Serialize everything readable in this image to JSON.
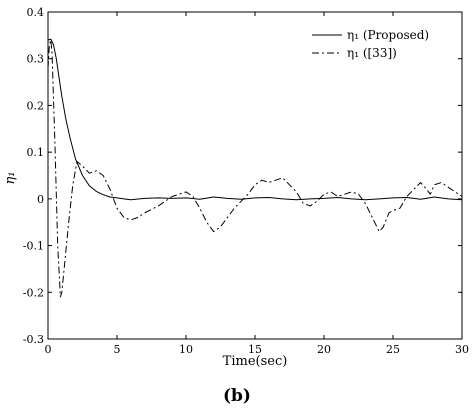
{
  "chart_data": {
    "type": "line",
    "xlabel": "Time(sec)",
    "ylabel": "η₁",
    "panel_label": "(b)",
    "xlim": [
      0,
      30
    ],
    "ylim": [
      -0.3,
      0.4
    ],
    "xticks": [
      0,
      5,
      10,
      15,
      20,
      25,
      30
    ],
    "yticks": [
      -0.3,
      -0.2,
      -0.1,
      0,
      0.1,
      0.2,
      0.3,
      0.4
    ],
    "ytick_labels": [
      "-0.3",
      "-0.2",
      "-0.1",
      "0",
      "0.1",
      "0.2",
      "0.3",
      "0.4"
    ],
    "legend_position": "top-right",
    "series": [
      {
        "name": "η₁ (Proposed)",
        "style": "solid",
        "color": "#000000",
        "x": [
          0,
          0.2,
          0.4,
          0.6,
          0.8,
          1.0,
          1.3,
          1.6,
          2.0,
          2.5,
          3.0,
          3.5,
          4.0,
          4.5,
          5.0,
          5.5,
          6,
          7,
          8,
          9,
          10,
          11,
          12,
          13,
          14,
          15,
          16,
          17,
          18,
          19,
          20,
          21,
          22,
          23,
          24,
          25,
          26,
          27,
          28,
          29,
          30
        ],
        "y": [
          0.34,
          0.342,
          0.33,
          0.3,
          0.26,
          0.22,
          0.17,
          0.13,
          0.085,
          0.05,
          0.028,
          0.016,
          0.009,
          0.004,
          0.002,
          0.0,
          -0.002,
          0.001,
          0.002,
          0.001,
          0.002,
          -0.001,
          0.004,
          0.001,
          -0.001,
          0.002,
          0.003,
          0.0,
          -0.002,
          0.0,
          0.001,
          0.003,
          0.0,
          -0.002,
          0.0,
          0.002,
          0.003,
          -0.001,
          0.004,
          0.0,
          -0.002
        ]
      },
      {
        "name": "η₁ ([33])",
        "style": "dashdot",
        "color": "#000000",
        "x": [
          0,
          0.1,
          0.2,
          0.3,
          0.5,
          0.7,
          0.9,
          1.0,
          1.2,
          1.5,
          1.8,
          2.1,
          2.5,
          3.0,
          3.5,
          4.0,
          4.5,
          5.0,
          5.5,
          6.0,
          6.5,
          7.0,
          8.0,
          9.0,
          9.5,
          10.0,
          10.5,
          11.0,
          11.5,
          12.0,
          12.5,
          13.0,
          13.5,
          14.0,
          14.5,
          15.0,
          15.5,
          16.0,
          16.5,
          17.0,
          17.5,
          18.0,
          18.5,
          19.0,
          19.5,
          20.0,
          20.5,
          21.0,
          21.5,
          22.0,
          22.5,
          23.0,
          23.5,
          24.0,
          24.3,
          24.7,
          25.0,
          25.5,
          26.0,
          26.5,
          27.0,
          27.3,
          27.7,
          28.0,
          28.5,
          29.0,
          29.5,
          30.0
        ],
        "y": [
          0.28,
          0.33,
          0.34,
          0.31,
          0.12,
          -0.1,
          -0.21,
          -0.2,
          -0.14,
          -0.05,
          0.03,
          0.08,
          0.07,
          0.055,
          0.06,
          0.05,
          0.02,
          -0.02,
          -0.04,
          -0.045,
          -0.04,
          -0.03,
          -0.015,
          0.005,
          0.01,
          0.015,
          0.005,
          -0.02,
          -0.05,
          -0.07,
          -0.06,
          -0.04,
          -0.02,
          -0.005,
          0.01,
          0.03,
          0.04,
          0.035,
          0.04,
          0.045,
          0.03,
          0.015,
          -0.01,
          -0.015,
          -0.005,
          0.01,
          0.015,
          0.005,
          0.01,
          0.015,
          0.01,
          -0.01,
          -0.04,
          -0.07,
          -0.06,
          -0.03,
          -0.025,
          -0.02,
          0.005,
          0.02,
          0.035,
          0.025,
          0.01,
          0.03,
          0.035,
          0.025,
          0.015,
          0.005
        ]
      }
    ]
  }
}
